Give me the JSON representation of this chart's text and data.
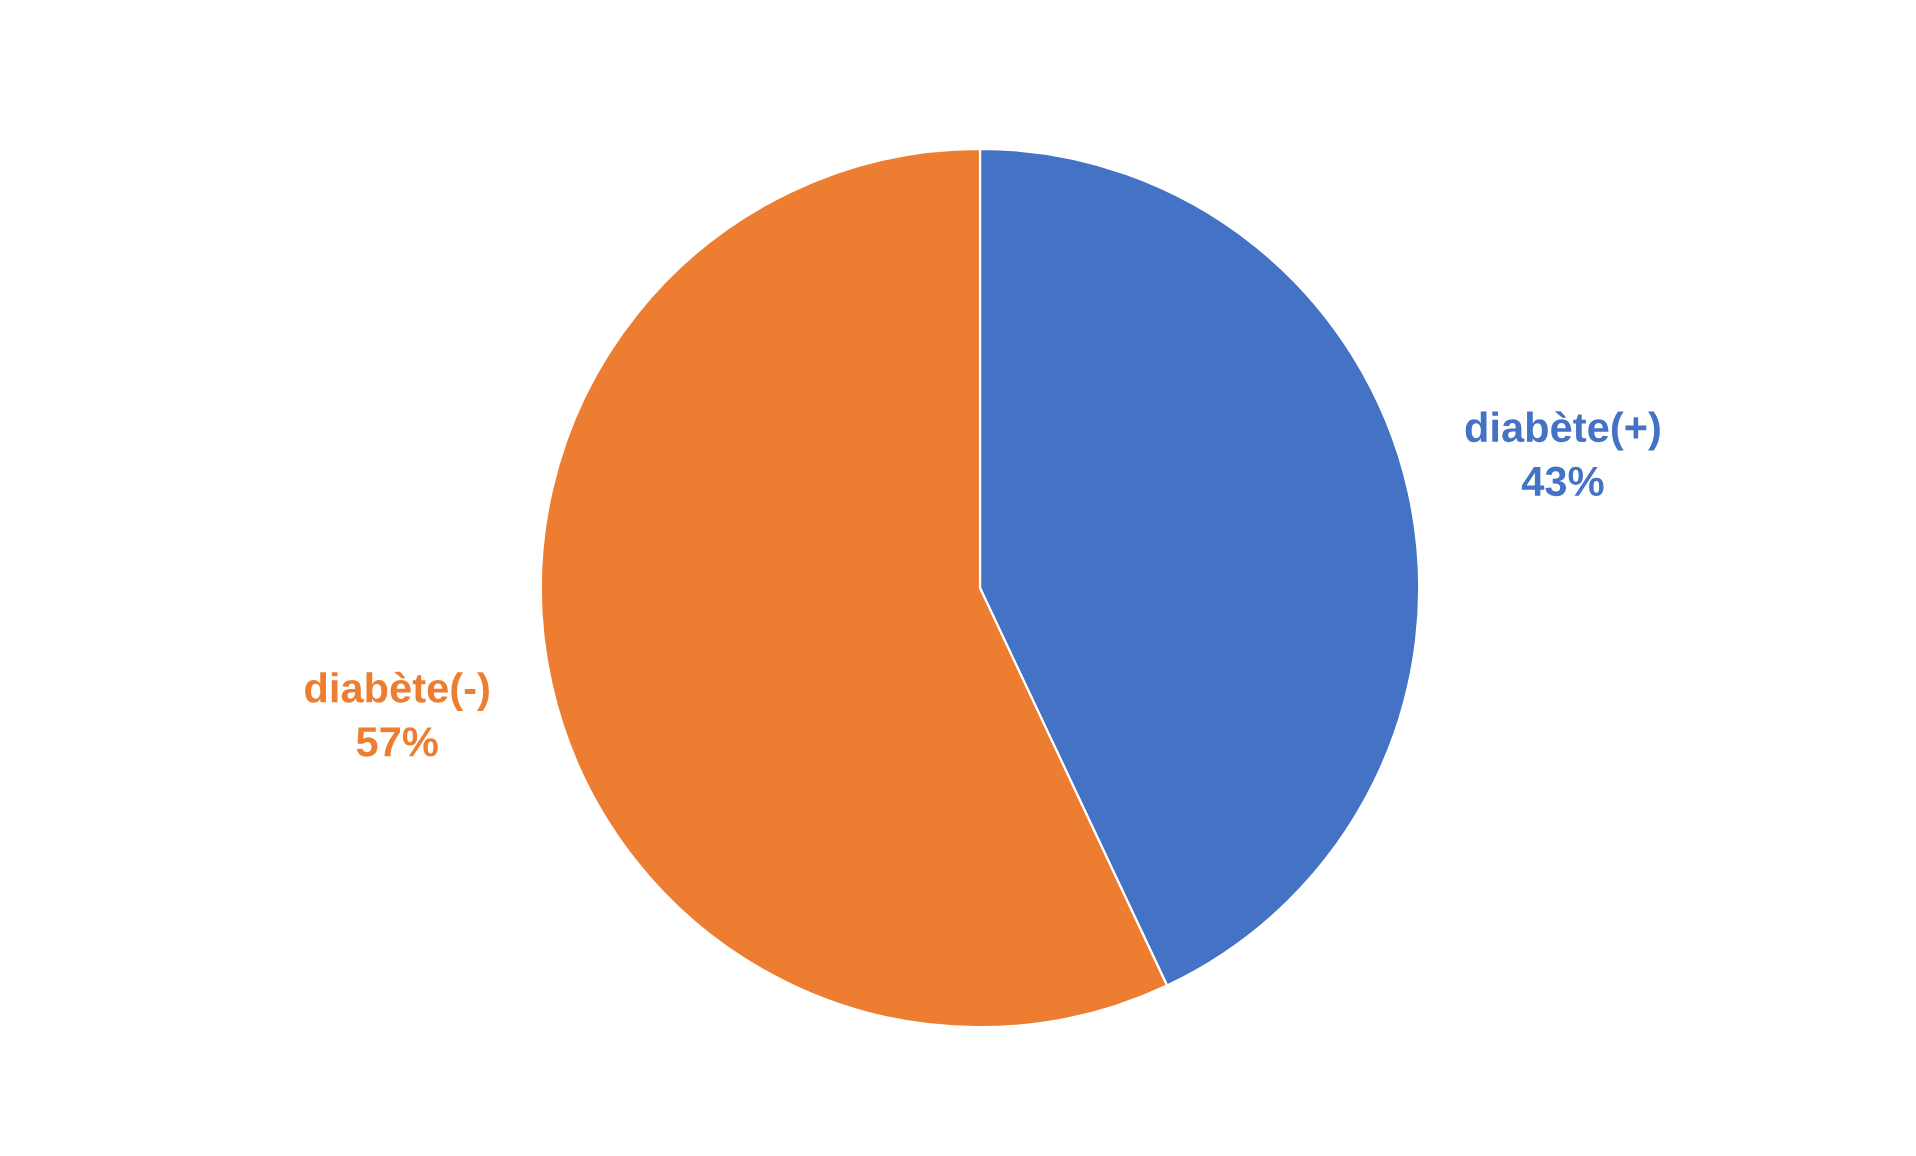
{
  "chart_data": {
    "type": "pie",
    "categories": [
      "diabète(+)",
      "diabète(-)"
    ],
    "values": [
      43,
      57
    ],
    "value_labels": [
      "43%",
      "57%"
    ],
    "colors": [
      "#4472c4",
      "#ed7d31"
    ],
    "legend": false
  }
}
